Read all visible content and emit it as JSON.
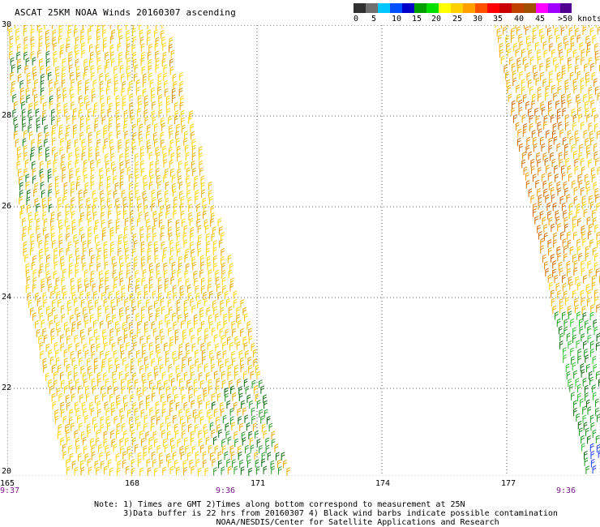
{
  "title": "ASCAT 25KM NOAA Winds 20160307 ascending",
  "legend": {
    "colors": [
      "#303030",
      "#707070",
      "#00c8ff",
      "#0050ff",
      "#0000c8",
      "#00a000",
      "#00e000",
      "#ffff00",
      "#ffd000",
      "#ffa000",
      "#ff5000",
      "#ff0000",
      "#c80000",
      "#c04000",
      "#a05000",
      "#ff00ff",
      "#a000ff",
      "#500090"
    ],
    "labels": [
      "0",
      "5",
      "10",
      "15",
      "20",
      "25",
      "30",
      "35",
      "40",
      "45",
      ">50 knots"
    ]
  },
  "map": {
    "lat_ticks": [
      "30",
      "28",
      "26",
      "24",
      "22",
      "20"
    ],
    "lon_ticks": [
      "165",
      "168",
      "171",
      "174",
      "177"
    ],
    "time_labels": [
      "9:37",
      "9:36",
      "9:36"
    ]
  },
  "notes": [
    "Note: 1) Times are GMT 2)Times along bottom correspond to measurement at 25N",
    "      3)Data buffer is 22 hrs from 20160307 4) Black wind barbs indicate possible contamination",
    "                         NOAA/NESDIS/Center for Satellite Applications and Research"
  ]
}
